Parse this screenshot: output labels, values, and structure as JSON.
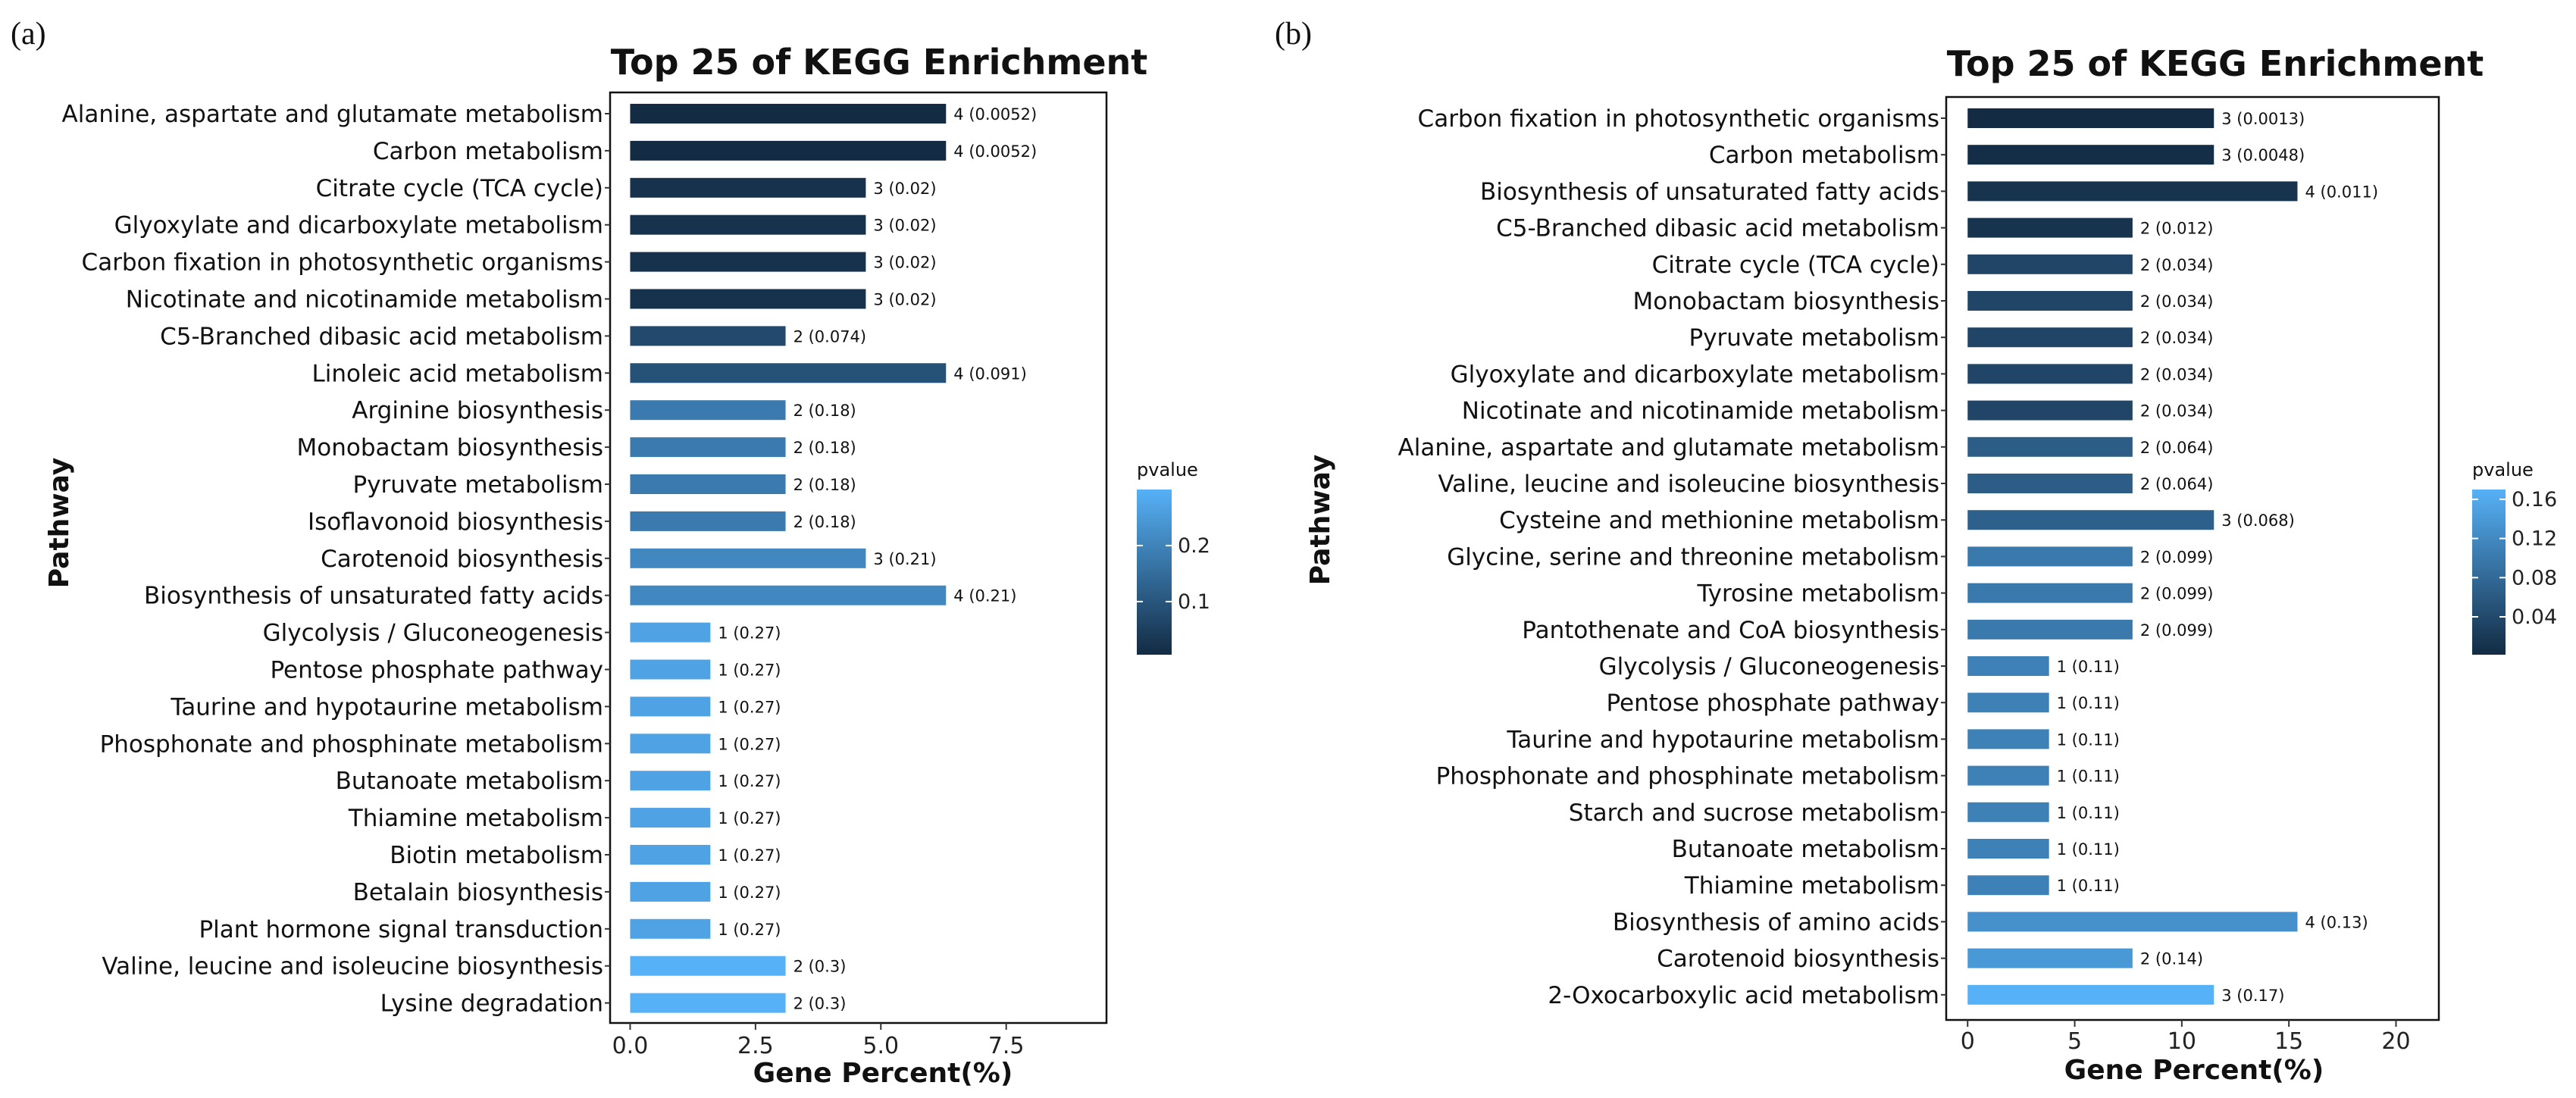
{
  "chart_data": [
    {
      "panel_label": "(a)",
      "type": "bar",
      "orientation": "horizontal",
      "title": "Top 25 of KEGG Enrichment",
      "xlabel": "Gene Percent(%)",
      "ylabel": "Pathway",
      "xlim": [
        -0.4,
        9.5
      ],
      "xticks": [
        0,
        2.5,
        5,
        7.5
      ],
      "xtick_labels": [
        "0.0",
        "2.5",
        "5.0",
        "7.5"
      ],
      "legend": {
        "title": "pvalue",
        "position": "right",
        "ticks": [
          0.1,
          0.2
        ],
        "tick_labels": [
          "0.1",
          "0.2"
        ],
        "min": 0.0052,
        "max": 0.3,
        "low_color": "#132B43",
        "high_color": "#56B1F7"
      },
      "categories": [
        "Alanine, aspartate and glutamate metabolism",
        "Carbon metabolism",
        "Citrate cycle (TCA cycle)",
        "Glyoxylate and dicarboxylate metabolism",
        "Carbon fixation in photosynthetic organisms",
        "Nicotinate and nicotinamide metabolism",
        "C5-Branched dibasic acid metabolism",
        "Linoleic acid metabolism",
        "Arginine biosynthesis",
        "Monobactam biosynthesis",
        "Pyruvate metabolism",
        "Isoflavonoid biosynthesis",
        "Carotenoid biosynthesis",
        "Biosynthesis of unsaturated fatty acids",
        "Glycolysis / Gluconeogenesis",
        "Pentose phosphate pathway",
        "Taurine and hypotaurine metabolism",
        "Phosphonate and phosphinate metabolism",
        "Butanoate metabolism",
        "Thiamine metabolism",
        "Biotin metabolism",
        "Betalain biosynthesis",
        "Plant hormone signal transduction",
        "Valine, leucine and isoleucine biosynthesis",
        "Lysine degradation"
      ],
      "values": [
        6.3,
        6.3,
        4.7,
        4.7,
        4.7,
        4.7,
        3.1,
        6.3,
        3.1,
        3.1,
        3.1,
        3.1,
        4.7,
        6.3,
        1.6,
        1.6,
        1.6,
        1.6,
        1.6,
        1.6,
        1.6,
        1.6,
        1.6,
        3.1,
        3.1
      ],
      "pvalues": [
        0.0052,
        0.0052,
        0.02,
        0.02,
        0.02,
        0.02,
        0.074,
        0.091,
        0.18,
        0.18,
        0.18,
        0.18,
        0.21,
        0.21,
        0.27,
        0.27,
        0.27,
        0.27,
        0.27,
        0.27,
        0.27,
        0.27,
        0.27,
        0.3,
        0.3
      ],
      "bar_labels": [
        "4 (0.0052)",
        "4 (0.0052)",
        "3 (0.02)",
        "3 (0.02)",
        "3 (0.02)",
        "3 (0.02)",
        "2 (0.074)",
        "4 (0.091)",
        "2 (0.18)",
        "2 (0.18)",
        "2 (0.18)",
        "2 (0.18)",
        "3 (0.21)",
        "4 (0.21)",
        "1 (0.27)",
        "1 (0.27)",
        "1 (0.27)",
        "1 (0.27)",
        "1 (0.27)",
        "1 (0.27)",
        "1 (0.27)",
        "1 (0.27)",
        "1 (0.27)",
        "2 (0.3)",
        "2 (0.3)"
      ]
    },
    {
      "panel_label": "(b)",
      "type": "bar",
      "orientation": "horizontal",
      "title": "Top 25 of KEGG Enrichment",
      "xlabel": "Gene Percent(%)",
      "ylabel": "Pathway",
      "xlim": [
        -1,
        22
      ],
      "xticks": [
        0,
        5,
        10,
        15,
        20
      ],
      "xtick_labels": [
        "0",
        "5",
        "10",
        "15",
        "20"
      ],
      "legend": {
        "title": "pvalue",
        "position": "right",
        "ticks": [
          0.04,
          0.08,
          0.12,
          0.16
        ],
        "tick_labels": [
          "0.04",
          "0.08",
          "0.12",
          "0.16"
        ],
        "min": 0.0013,
        "max": 0.17,
        "low_color": "#132B43",
        "high_color": "#56B1F7"
      },
      "categories": [
        "Carbon fixation in photosynthetic organisms",
        "Carbon metabolism",
        "Biosynthesis of unsaturated fatty acids",
        "C5-Branched dibasic acid metabolism",
        "Citrate cycle (TCA cycle)",
        "Monobactam biosynthesis",
        "Pyruvate metabolism",
        "Glyoxylate and dicarboxylate metabolism",
        "Nicotinate and nicotinamide metabolism",
        "Alanine, aspartate and glutamate metabolism",
        "Valine, leucine and isoleucine biosynthesis",
        "Cysteine and methionine metabolism",
        "Glycine, serine and threonine metabolism",
        "Tyrosine metabolism",
        "Pantothenate and CoA biosynthesis",
        "Glycolysis / Gluconeogenesis",
        "Pentose phosphate pathway",
        "Taurine and hypotaurine metabolism",
        "Phosphonate and phosphinate metabolism",
        "Starch and sucrose metabolism",
        "Butanoate metabolism",
        "Thiamine metabolism",
        "Biosynthesis of amino acids",
        "Carotenoid biosynthesis",
        "2-Oxocarboxylic acid metabolism"
      ],
      "values": [
        11.5,
        11.5,
        15.4,
        7.7,
        7.7,
        7.7,
        7.7,
        7.7,
        7.7,
        7.7,
        7.7,
        11.5,
        7.7,
        7.7,
        7.7,
        3.8,
        3.8,
        3.8,
        3.8,
        3.8,
        3.8,
        3.8,
        15.4,
        7.7,
        11.5
      ],
      "pvalues": [
        0.0013,
        0.0048,
        0.011,
        0.012,
        0.034,
        0.034,
        0.034,
        0.034,
        0.034,
        0.064,
        0.064,
        0.068,
        0.099,
        0.099,
        0.099,
        0.11,
        0.11,
        0.11,
        0.11,
        0.11,
        0.11,
        0.11,
        0.13,
        0.14,
        0.17
      ],
      "bar_labels": [
        "3 (0.0013)",
        "3 (0.0048)",
        "4 (0.011)",
        "2 (0.012)",
        "2 (0.034)",
        "2 (0.034)",
        "2 (0.034)",
        "2 (0.034)",
        "2 (0.034)",
        "2 (0.064)",
        "2 (0.064)",
        "3 (0.068)",
        "2 (0.099)",
        "2 (0.099)",
        "2 (0.099)",
        "1 (0.11)",
        "1 (0.11)",
        "1 (0.11)",
        "1 (0.11)",
        "1 (0.11)",
        "1 (0.11)",
        "1 (0.11)",
        "4 (0.13)",
        "2 (0.14)",
        "3 (0.17)"
      ]
    }
  ]
}
